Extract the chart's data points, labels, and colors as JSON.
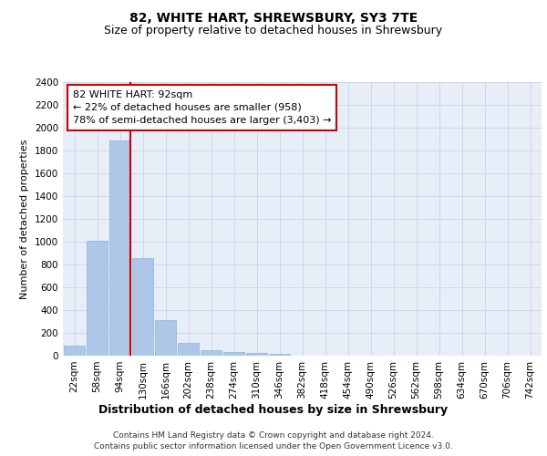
{
  "title": "82, WHITE HART, SHREWSBURY, SY3 7TE",
  "subtitle": "Size of property relative to detached houses in Shrewsbury",
  "xlabel": "Distribution of detached houses by size in Shrewsbury",
  "ylabel": "Number of detached properties",
  "categories": [
    "22sqm",
    "58sqm",
    "94sqm",
    "130sqm",
    "166sqm",
    "202sqm",
    "238sqm",
    "274sqm",
    "310sqm",
    "346sqm",
    "382sqm",
    "418sqm",
    "454sqm",
    "490sqm",
    "526sqm",
    "562sqm",
    "598sqm",
    "634sqm",
    "670sqm",
    "706sqm",
    "742sqm"
  ],
  "values": [
    85,
    1010,
    1890,
    855,
    315,
    115,
    48,
    35,
    28,
    15,
    0,
    0,
    0,
    0,
    0,
    0,
    0,
    0,
    0,
    0,
    0
  ],
  "bar_color": "#aec6e8",
  "bar_edge_color": "#8ab4d8",
  "property_line_color": "#cc0000",
  "annotation_text": "82 WHITE HART: 92sqm\n← 22% of detached houses are smaller (958)\n78% of semi-detached houses are larger (3,403) →",
  "annotation_box_color": "#ffffff",
  "annotation_box_edge_color": "#cc0000",
  "ylim": [
    0,
    2400
  ],
  "yticks": [
    0,
    200,
    400,
    600,
    800,
    1000,
    1200,
    1400,
    1600,
    1800,
    2000,
    2200,
    2400
  ],
  "footer_line1": "Contains HM Land Registry data © Crown copyright and database right 2024.",
  "footer_line2": "Contains public sector information licensed under the Open Government Licence v3.0.",
  "plot_bg_color": "#e8eef8",
  "title_fontsize": 10,
  "subtitle_fontsize": 9,
  "ylabel_fontsize": 8,
  "xlabel_fontsize": 9,
  "tick_fontsize": 7.5,
  "footer_fontsize": 6.5,
  "annot_fontsize": 8
}
